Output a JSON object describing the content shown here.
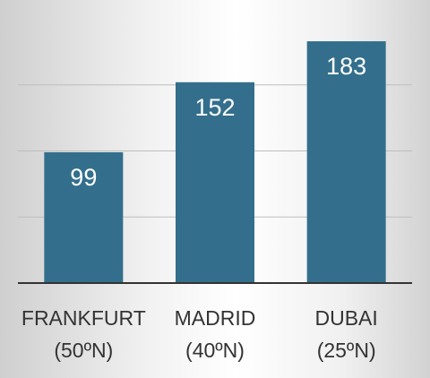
{
  "chart_data": {
    "type": "bar",
    "categories": [
      "FRANKFURT\n(50ºN)",
      "MADRID\n(40ºN)",
      "DUBAI\n(25ºN)"
    ],
    "values": [
      99,
      152,
      183
    ],
    "color": "#336f8c",
    "ylim": [
      0,
      200
    ],
    "yticks": [
      50,
      100,
      150
    ],
    "grid": true
  }
}
